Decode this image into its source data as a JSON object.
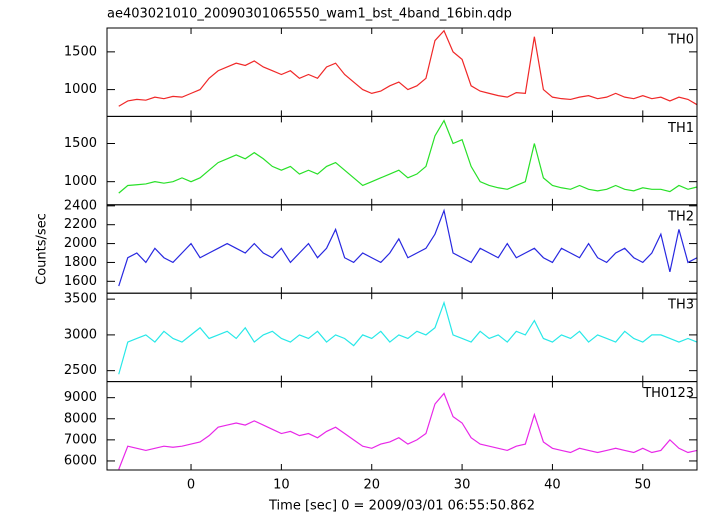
{
  "chart_data": {
    "type": "line",
    "title": "ae403021010_20090301065550_wam1_bst_4band_16bin.qdp",
    "xlabel": "Time [sec] 0 = 2009/03/01 06:55:50.862",
    "ylabel": "Counts/sec",
    "xlim": [
      -9.3,
      56.0
    ],
    "xticks": [
      0,
      10,
      20,
      30,
      40,
      50
    ],
    "x": [
      -8,
      -7,
      -6,
      -5,
      -4,
      -3,
      -2,
      -1,
      0,
      1,
      2,
      3,
      4,
      5,
      6,
      7,
      8,
      9,
      10,
      11,
      12,
      13,
      14,
      15,
      16,
      17,
      18,
      19,
      20,
      21,
      22,
      23,
      24,
      25,
      26,
      27,
      28,
      29,
      30,
      31,
      32,
      33,
      34,
      35,
      36,
      37,
      38,
      39,
      40,
      41,
      42,
      43,
      44,
      45,
      46,
      47,
      48,
      49,
      50,
      51,
      52,
      53,
      54,
      55,
      56
    ],
    "series": [
      {
        "name": "TH0",
        "color": "#f02828",
        "ylim": [
          645,
          1816
        ],
        "yticks": [
          1000,
          1500
        ],
        "values": [
          780,
          850,
          870,
          860,
          900,
          880,
          910,
          900,
          950,
          1000,
          1150,
          1250,
          1300,
          1350,
          1320,
          1380,
          1300,
          1250,
          1200,
          1250,
          1150,
          1200,
          1150,
          1300,
          1350,
          1200,
          1100,
          1000,
          950,
          980,
          1050,
          1100,
          1000,
          1050,
          1150,
          1650,
          1780,
          1500,
          1400,
          1050,
          980,
          950,
          920,
          900,
          960,
          950,
          1700,
          1000,
          900,
          880,
          870,
          900,
          920,
          880,
          900,
          950,
          900,
          880,
          920,
          880,
          900,
          850,
          900,
          870,
          800
        ]
      },
      {
        "name": "TH1",
        "color": "#28e028",
        "ylim": [
          697,
          1855
        ],
        "yticks": [
          1000,
          1500
        ],
        "values": [
          850,
          950,
          960,
          970,
          1000,
          980,
          1000,
          1050,
          1000,
          1050,
          1150,
          1250,
          1300,
          1350,
          1300,
          1380,
          1300,
          1200,
          1150,
          1200,
          1100,
          1150,
          1100,
          1200,
          1250,
          1150,
          1050,
          950,
          1000,
          1050,
          1100,
          1150,
          1050,
          1100,
          1200,
          1600,
          1800,
          1500,
          1550,
          1200,
          1000,
          950,
          920,
          900,
          950,
          1000,
          1500,
          1050,
          950,
          920,
          900,
          950,
          900,
          880,
          900,
          950,
          900,
          880,
          920,
          900,
          900,
          870,
          950,
          900,
          930
        ]
      },
      {
        "name": "TH2",
        "color": "#2828e0",
        "ylim": [
          1474,
          2411
        ],
        "yticks": [
          1600,
          1800,
          2000,
          2200,
          2400
        ],
        "values": [
          1550,
          1850,
          1900,
          1800,
          1950,
          1850,
          1800,
          1900,
          2000,
          1850,
          1900,
          1950,
          2000,
          1950,
          1900,
          2000,
          1900,
          1850,
          1950,
          1800,
          1900,
          2000,
          1850,
          1950,
          2150,
          1850,
          1800,
          1900,
          1850,
          1800,
          1900,
          2050,
          1850,
          1900,
          1950,
          2100,
          2350,
          1900,
          1850,
          1800,
          1950,
          1900,
          1850,
          2000,
          1850,
          1900,
          1950,
          1850,
          1800,
          1950,
          1900,
          1850,
          2000,
          1850,
          1800,
          1900,
          1950,
          1850,
          1800,
          1900,
          2100,
          1700,
          2150,
          1800,
          1850
        ]
      },
      {
        "name": "TH3",
        "color": "#28e8e8",
        "ylim": [
          2347,
          3583
        ],
        "yticks": [
          2500,
          3000,
          3500
        ],
        "values": [
          2450,
          2900,
          2950,
          3000,
          2900,
          3050,
          2950,
          2900,
          3000,
          3100,
          2950,
          3000,
          3050,
          2950,
          3100,
          2900,
          3000,
          3050,
          2950,
          2900,
          3000,
          2950,
          3050,
          2900,
          3000,
          2950,
          2850,
          3000,
          2950,
          3050,
          2900,
          3000,
          2950,
          3050,
          3000,
          3100,
          3450,
          3000,
          2950,
          2900,
          3050,
          2950,
          3000,
          2900,
          3050,
          3000,
          3200,
          2950,
          2900,
          3000,
          2950,
          3050,
          2900,
          3000,
          2950,
          2900,
          3050,
          2950,
          2900,
          3000,
          3000,
          2950,
          2900,
          2950,
          2900
        ]
      },
      {
        "name": "TH0123",
        "color": "#e828e8",
        "ylim": [
          5571,
          9762
        ],
        "yticks": [
          6000,
          7000,
          8000,
          9000
        ],
        "values": [
          5600,
          6700,
          6600,
          6500,
          6600,
          6700,
          6650,
          6700,
          6800,
          6900,
          7200,
          7600,
          7700,
          7800,
          7700,
          7900,
          7700,
          7500,
          7300,
          7400,
          7200,
          7300,
          7100,
          7400,
          7600,
          7300,
          7000,
          6700,
          6600,
          6800,
          6900,
          7100,
          6800,
          7000,
          7300,
          8700,
          9200,
          8100,
          7800,
          7100,
          6800,
          6700,
          6600,
          6500,
          6700,
          6800,
          8200,
          6900,
          6600,
          6500,
          6400,
          6600,
          6500,
          6400,
          6500,
          6600,
          6500,
          6400,
          6600,
          6400,
          6500,
          7000,
          6600,
          6400,
          6500
        ]
      }
    ]
  }
}
